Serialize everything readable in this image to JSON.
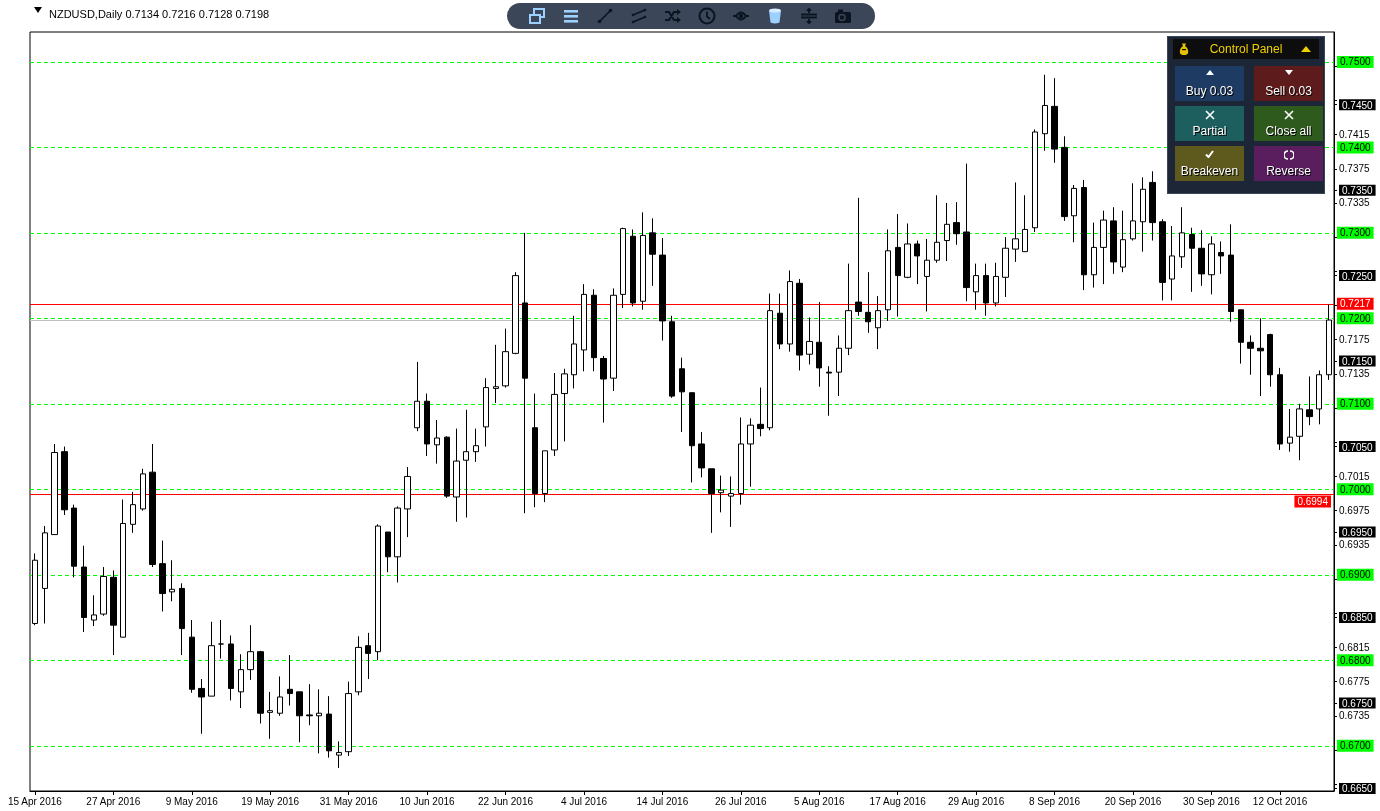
{
  "chart_data": {
    "type": "candlestick",
    "title": "NZDUSD,Daily 0.7134 0.7216 0.7128 0.7198",
    "categories": [
      "15 Apr 2016",
      null,
      null,
      null,
      null,
      null,
      null,
      null,
      "27 Apr 2016",
      null,
      null,
      null,
      null,
      null,
      null,
      null,
      "9 May 2016",
      null,
      null,
      null,
      null,
      null,
      null,
      null,
      "19 May 2016",
      null,
      null,
      null,
      null,
      null,
      null,
      null,
      "31 May 2016",
      null,
      null,
      null,
      null,
      null,
      null,
      null,
      "10 Jun 2016",
      null,
      null,
      null,
      null,
      null,
      null,
      null,
      "22 Jun 2016",
      null,
      null,
      null,
      null,
      null,
      null,
      null,
      "4 Jul 2016",
      null,
      null,
      null,
      null,
      null,
      null,
      null,
      "14 Jul 2016",
      null,
      null,
      null,
      null,
      null,
      null,
      null,
      "26 Jul 2016",
      null,
      null,
      null,
      null,
      null,
      null,
      null,
      "5 Aug 2016",
      null,
      null,
      null,
      null,
      null,
      null,
      null,
      "17 Aug 2016",
      null,
      null,
      null,
      null,
      null,
      null,
      null,
      "29 Aug 2016",
      null,
      null,
      null,
      null,
      null,
      null,
      null,
      "8 Sep 2016",
      null,
      null,
      null,
      null,
      null,
      null,
      null,
      "20 Sep 2016",
      null,
      null,
      null,
      null,
      null,
      null,
      null,
      "30 Sep 2016",
      null,
      null,
      null,
      null,
      null,
      null,
      "12 Oct 2016",
      null,
      null,
      null,
      null,
      null
    ],
    "ohlc": [
      [
        0.6843,
        0.6925,
        0.6841,
        0.6917
      ],
      [
        0.6884,
        0.6957,
        0.6843,
        0.6949
      ],
      [
        0.6947,
        0.7053,
        0.6947,
        0.7043
      ],
      [
        0.7044,
        0.705,
        0.697,
        0.6976
      ],
      [
        0.6978,
        0.6982,
        0.6897,
        0.691
      ],
      [
        0.6909,
        0.6934,
        0.6833,
        0.685
      ],
      [
        0.6847,
        0.6876,
        0.684,
        0.6853
      ],
      [
        0.6854,
        0.6909,
        0.6852,
        0.6898
      ],
      [
        0.6897,
        0.6905,
        0.6806,
        0.6841
      ],
      [
        0.6827,
        0.6988,
        0.6827,
        0.696
      ],
      [
        0.6959,
        0.6997,
        0.6949,
        0.6982
      ],
      [
        0.6977,
        0.7024,
        0.6975,
        0.7018
      ],
      [
        0.702,
        0.7053,
        0.6909,
        0.6912
      ],
      [
        0.6913,
        0.694,
        0.6857,
        0.6878
      ],
      [
        0.688,
        0.6917,
        0.6869,
        0.6883
      ],
      [
        0.6884,
        0.689,
        0.6806,
        0.6837
      ],
      [
        0.6827,
        0.6847,
        0.6762,
        0.6766
      ],
      [
        0.6767,
        0.6778,
        0.6714,
        0.6757
      ],
      [
        0.6758,
        0.6845,
        0.6758,
        0.6817
      ],
      [
        0.6819,
        0.6847,
        0.6802,
        0.6819
      ],
      [
        0.6819,
        0.6829,
        0.6753,
        0.6767
      ],
      [
        0.6763,
        0.6807,
        0.6744,
        0.6789
      ],
      [
        0.6789,
        0.6841,
        0.6777,
        0.681
      ],
      [
        0.681,
        0.6811,
        0.6726,
        0.6738
      ],
      [
        0.6739,
        0.6763,
        0.6708,
        0.6741
      ],
      [
        0.6738,
        0.6781,
        0.6735,
        0.6757
      ],
      [
        0.6766,
        0.6806,
        0.6747,
        0.6761
      ],
      [
        0.6763,
        0.6763,
        0.6704,
        0.6735
      ],
      [
        0.6736,
        0.6772,
        0.6724,
        0.6735
      ],
      [
        0.6735,
        0.6766,
        0.6691,
        0.6738
      ],
      [
        0.6737,
        0.6758,
        0.6686,
        0.6694
      ],
      [
        0.6689,
        0.6705,
        0.6674,
        0.6692
      ],
      [
        0.6693,
        0.6775,
        0.6688,
        0.6761
      ],
      [
        0.6763,
        0.6828,
        0.6759,
        0.6815
      ],
      [
        0.6817,
        0.6832,
        0.6778,
        0.6808
      ],
      [
        0.681,
        0.6959,
        0.68,
        0.6957
      ],
      [
        0.695,
        0.695,
        0.6903,
        0.6921
      ],
      [
        0.6921,
        0.698,
        0.6891,
        0.6978
      ],
      [
        0.6977,
        0.7026,
        0.6944,
        0.7015
      ],
      [
        0.7072,
        0.7149,
        0.7068,
        0.7103
      ],
      [
        0.7103,
        0.7112,
        0.7039,
        0.7053
      ],
      [
        0.7052,
        0.7081,
        0.703,
        0.706
      ],
      [
        0.7061,
        0.7062,
        0.699,
        0.6992
      ],
      [
        0.6991,
        0.7071,
        0.6962,
        0.7033
      ],
      [
        0.7034,
        0.7093,
        0.6967,
        0.7044
      ],
      [
        0.7044,
        0.7071,
        0.7032,
        0.7051
      ],
      [
        0.7073,
        0.713,
        0.705,
        0.7119
      ],
      [
        0.7118,
        0.7169,
        0.7101,
        0.712
      ],
      [
        0.7121,
        0.7188,
        0.7119,
        0.7161
      ],
      [
        0.7159,
        0.7254,
        0.7158,
        0.725
      ],
      [
        0.7218,
        0.73,
        0.6972,
        0.713
      ],
      [
        0.7072,
        0.7112,
        0.6979,
        0.6995
      ],
      [
        0.6995,
        0.7045,
        0.6985,
        0.7045
      ],
      [
        0.7046,
        0.7136,
        0.7039,
        0.7111
      ],
      [
        0.7112,
        0.7141,
        0.7056,
        0.7135
      ],
      [
        0.7134,
        0.7203,
        0.7118,
        0.717
      ],
      [
        0.7163,
        0.724,
        0.7138,
        0.7228
      ],
      [
        0.7227,
        0.7234,
        0.7138,
        0.7154
      ],
      [
        0.7153,
        0.7156,
        0.7078,
        0.7129
      ],
      [
        0.713,
        0.7235,
        0.7115,
        0.7227
      ],
      [
        0.7228,
        0.7306,
        0.7212,
        0.7305
      ],
      [
        0.7296,
        0.7304,
        0.7214,
        0.7218
      ],
      [
        0.722,
        0.7324,
        0.721,
        0.7297
      ],
      [
        0.73,
        0.7317,
        0.7238,
        0.7275
      ],
      [
        0.7274,
        0.7294,
        0.7174,
        0.7197
      ],
      [
        0.7196,
        0.7203,
        0.7107,
        0.7109
      ],
      [
        0.7141,
        0.7154,
        0.7067,
        0.7114
      ],
      [
        0.7113,
        0.7113,
        0.7008,
        0.7051
      ],
      [
        0.7053,
        0.7067,
        0.7014,
        0.7025
      ],
      [
        0.7024,
        0.7024,
        0.6949,
        0.6995
      ],
      [
        0.6996,
        0.7016,
        0.6973,
        0.6999
      ],
      [
        0.6992,
        0.7015,
        0.6956,
        0.6995
      ],
      [
        0.6995,
        0.7084,
        0.6982,
        0.7053
      ],
      [
        0.7053,
        0.7083,
        0.7003,
        0.7075
      ],
      [
        0.7076,
        0.7119,
        0.7062,
        0.7071
      ],
      [
        0.7072,
        0.7229,
        0.7069,
        0.7209
      ],
      [
        0.7206,
        0.7229,
        0.7164,
        0.717
      ],
      [
        0.717,
        0.7256,
        0.7161,
        0.7243
      ],
      [
        0.7241,
        0.7246,
        0.7139,
        0.7157
      ],
      [
        0.7158,
        0.7201,
        0.7146,
        0.7173
      ],
      [
        0.7172,
        0.7219,
        0.712,
        0.7142
      ],
      [
        0.7137,
        0.7144,
        0.7086,
        0.7136
      ],
      [
        0.7137,
        0.718,
        0.7109,
        0.7165
      ],
      [
        0.7165,
        0.7264,
        0.7157,
        0.7209
      ],
      [
        0.7219,
        0.7341,
        0.7203,
        0.7208
      ],
      [
        0.7207,
        0.7254,
        0.7183,
        0.7196
      ],
      [
        0.7189,
        0.7226,
        0.7164,
        0.7209
      ],
      [
        0.721,
        0.7304,
        0.7197,
        0.7279
      ],
      [
        0.7283,
        0.7322,
        0.7202,
        0.725
      ],
      [
        0.7248,
        0.7311,
        0.7247,
        0.7287
      ],
      [
        0.7287,
        0.7291,
        0.724,
        0.7273
      ],
      [
        0.7249,
        0.7293,
        0.7208,
        0.7268
      ],
      [
        0.7268,
        0.7344,
        0.7265,
        0.7289
      ],
      [
        0.7291,
        0.7335,
        0.7267,
        0.731
      ],
      [
        0.7312,
        0.7336,
        0.7286,
        0.7299
      ],
      [
        0.7301,
        0.7381,
        0.722,
        0.7236
      ],
      [
        0.7231,
        0.7264,
        0.721,
        0.725
      ],
      [
        0.725,
        0.7264,
        0.7203,
        0.7218
      ],
      [
        0.7218,
        0.7265,
        0.7214,
        0.7249
      ],
      [
        0.7248,
        0.7295,
        0.7225,
        0.7282
      ],
      [
        0.7281,
        0.7359,
        0.7266,
        0.7293
      ],
      [
        0.7278,
        0.7344,
        0.7278,
        0.7304
      ],
      [
        0.7306,
        0.7421,
        0.7301,
        0.7418
      ],
      [
        0.7416,
        0.7485,
        0.7396,
        0.7449
      ],
      [
        0.7448,
        0.7481,
        0.7382,
        0.7398
      ],
      [
        0.74,
        0.7413,
        0.7314,
        0.7319
      ],
      [
        0.732,
        0.7356,
        0.7289,
        0.7352
      ],
      [
        0.7353,
        0.7362,
        0.7233,
        0.7251
      ],
      [
        0.7251,
        0.7312,
        0.7236,
        0.7283
      ],
      [
        0.7283,
        0.7326,
        0.724,
        0.7315
      ],
      [
        0.7314,
        0.733,
        0.7252,
        0.7266
      ],
      [
        0.726,
        0.7326,
        0.7254,
        0.7292
      ],
      [
        0.7293,
        0.7358,
        0.7291,
        0.7314
      ],
      [
        0.7313,
        0.7365,
        0.7278,
        0.7351
      ],
      [
        0.7359,
        0.7372,
        0.7291,
        0.7312
      ],
      [
        0.7313,
        0.7316,
        0.7221,
        0.7242
      ],
      [
        0.7246,
        0.7308,
        0.7221,
        0.7273
      ],
      [
        0.7272,
        0.733,
        0.7259,
        0.73
      ],
      [
        0.7298,
        0.7306,
        0.7231,
        0.7282
      ],
      [
        0.7282,
        0.7303,
        0.7238,
        0.7252
      ],
      [
        0.7251,
        0.7296,
        0.7228,
        0.7287
      ],
      [
        0.7277,
        0.729,
        0.7252,
        0.7273
      ],
      [
        0.7274,
        0.731,
        0.7196,
        0.7208
      ],
      [
        0.721,
        0.721,
        0.7147,
        0.7172
      ],
      [
        0.7172,
        0.718,
        0.7134,
        0.7165
      ],
      [
        0.7165,
        0.72,
        0.7109,
        0.7162
      ],
      [
        0.7181,
        0.7182,
        0.712,
        0.7134
      ],
      [
        0.7134,
        0.7142,
        0.7046,
        0.7053
      ],
      [
        0.7054,
        0.7094,
        0.7044,
        0.7061
      ],
      [
        0.7062,
        0.71,
        0.7034,
        0.7094
      ],
      [
        0.7093,
        0.7132,
        0.7075,
        0.7085
      ],
      [
        0.7094,
        0.7139,
        0.7076,
        0.7134
      ],
      [
        0.7134,
        0.7216,
        0.7128,
        0.7198
      ]
    ],
    "ylim": [
      0.6647,
      0.7535
    ],
    "yticks": [
      {
        "value": 0.665,
        "label": "0.6650"
      },
      {
        "value": 0.6655,
        "label": null
      },
      {
        "value": 0.6695,
        "label": null
      },
      0.6735,
      {
        "value": 0.675,
        "label": "0.6750"
      },
      0.6775,
      0.6815,
      {
        "value": 0.685,
        "label": "0.6850"
      },
      {
        "value": 0.6855,
        "label": null
      },
      {
        "value": 0.6895,
        "label": null
      },
      0.6935,
      {
        "value": 0.695,
        "label": "0.6950"
      },
      0.6975,
      0.7015,
      {
        "value": 0.705,
        "label": "0.7050"
      },
      {
        "value": 0.7055,
        "label": null
      },
      {
        "value": 0.7095,
        "label": null
      },
      0.7135,
      {
        "value": 0.715,
        "label": "0.7150"
      },
      0.7175,
      {
        "value": 0.7215,
        "label": null
      },
      {
        "value": 0.725,
        "label": "0.7250"
      },
      {
        "value": 0.7255,
        "label": null
      },
      {
        "value": 0.7295,
        "label": null
      },
      0.7335,
      {
        "value": 0.735,
        "label": "0.7350"
      },
      0.7375,
      0.7415,
      {
        "value": 0.745,
        "label": "0.7450"
      },
      {
        "value": 0.7455,
        "label": null
      },
      {
        "value": 0.7495,
        "label": null
      }
    ],
    "ref_lines": [
      {
        "axis": "y",
        "value": 0.7217,
        "label": "0.7217",
        "color": "#ff0000",
        "line_style": "solid"
      },
      {
        "axis": "y",
        "value": 0.7198,
        "color": "#c0c0c0",
        "line_style": "solid"
      },
      {
        "axis": "y",
        "value": 0.6994,
        "label": "0.6994",
        "color": "#ff0000",
        "line_style": "solid"
      },
      {
        "axis": "y",
        "value": 0.75,
        "label": "0.7500",
        "color": "#00ff00",
        "line_style": "dashed"
      },
      {
        "axis": "y",
        "value": 0.74,
        "label": "0.7400",
        "color": "#00ff00",
        "line_style": "dashed"
      },
      {
        "axis": "y",
        "value": 0.73,
        "label": "0.7300",
        "color": "#00ff00",
        "line_style": "dashed"
      },
      {
        "axis": "y",
        "value": 0.72,
        "label": "0.7200",
        "color": "#00ff00",
        "line_style": "dashed"
      },
      {
        "axis": "y",
        "value": 0.71,
        "label": "0.7100",
        "color": "#00ff00",
        "line_style": "dashed"
      },
      {
        "axis": "y",
        "value": 0.7,
        "label": "0.7000",
        "color": "#00ff00",
        "line_style": "dashed"
      },
      {
        "axis": "y",
        "value": 0.69,
        "label": "0.6900",
        "color": "#00ff00",
        "line_style": "dashed"
      },
      {
        "axis": "y",
        "value": 0.68,
        "label": "0.6800",
        "color": "#00ff00",
        "line_style": "dashed"
      },
      {
        "axis": "y",
        "value": 0.67,
        "label": "0.6700",
        "color": "#00ff00",
        "line_style": "dashed"
      }
    ],
    "annotations": [
      "Control Panel",
      "Buy 0.03",
      "Sell 0.03",
      "Partial",
      "Close all",
      "Breakeven",
      "Reverse"
    ]
  }
}
